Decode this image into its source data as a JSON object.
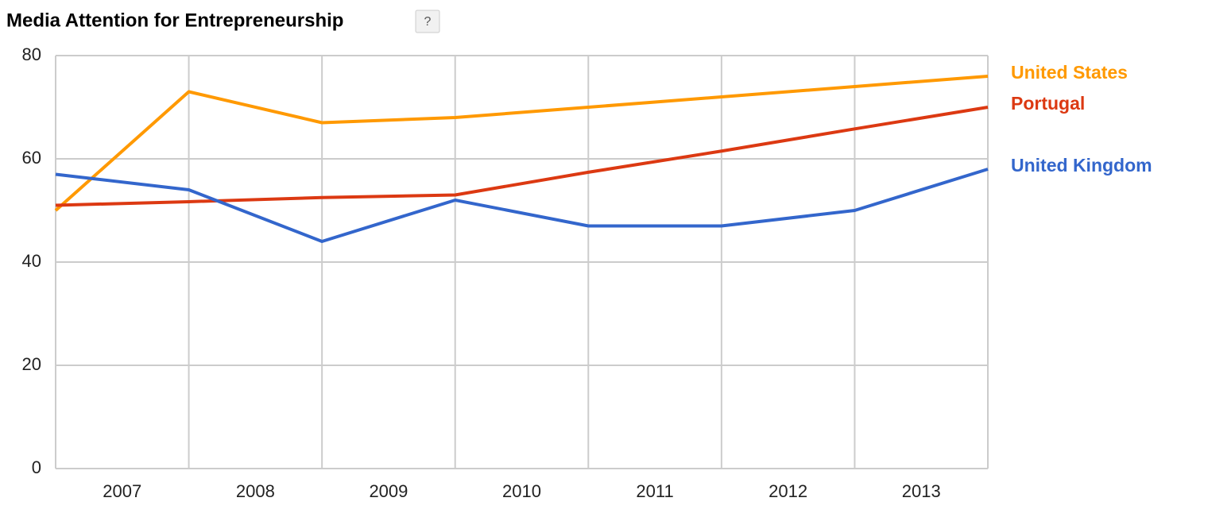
{
  "chart_data": {
    "type": "line",
    "title": "Media Attention for Entrepreneurship",
    "help": "?",
    "x": [
      2006.5,
      2007.5,
      2008.5,
      2009.5,
      2010.5,
      2011.5,
      2012.5,
      2013.5
    ],
    "xlim": [
      2006.5,
      2013.5
    ],
    "xticks": [
      2007,
      2008,
      2009,
      2010,
      2011,
      2012,
      2013
    ],
    "ylim": [
      0,
      80
    ],
    "yticks": [
      0,
      20,
      40,
      60,
      80
    ],
    "grid": true,
    "series": [
      {
        "name": "United States",
        "color": "#ff9900",
        "values": [
          50,
          73,
          67,
          68,
          70,
          72,
          74,
          76
        ]
      },
      {
        "name": "Portugal",
        "color": "#dc3912",
        "values": [
          51,
          51.7,
          52.5,
          53,
          57.4,
          61.5,
          65.8,
          70
        ]
      },
      {
        "name": "United Kingdom",
        "color": "#3366cc",
        "values": [
          57,
          54,
          44,
          52,
          47,
          47,
          50,
          58
        ]
      }
    ]
  }
}
